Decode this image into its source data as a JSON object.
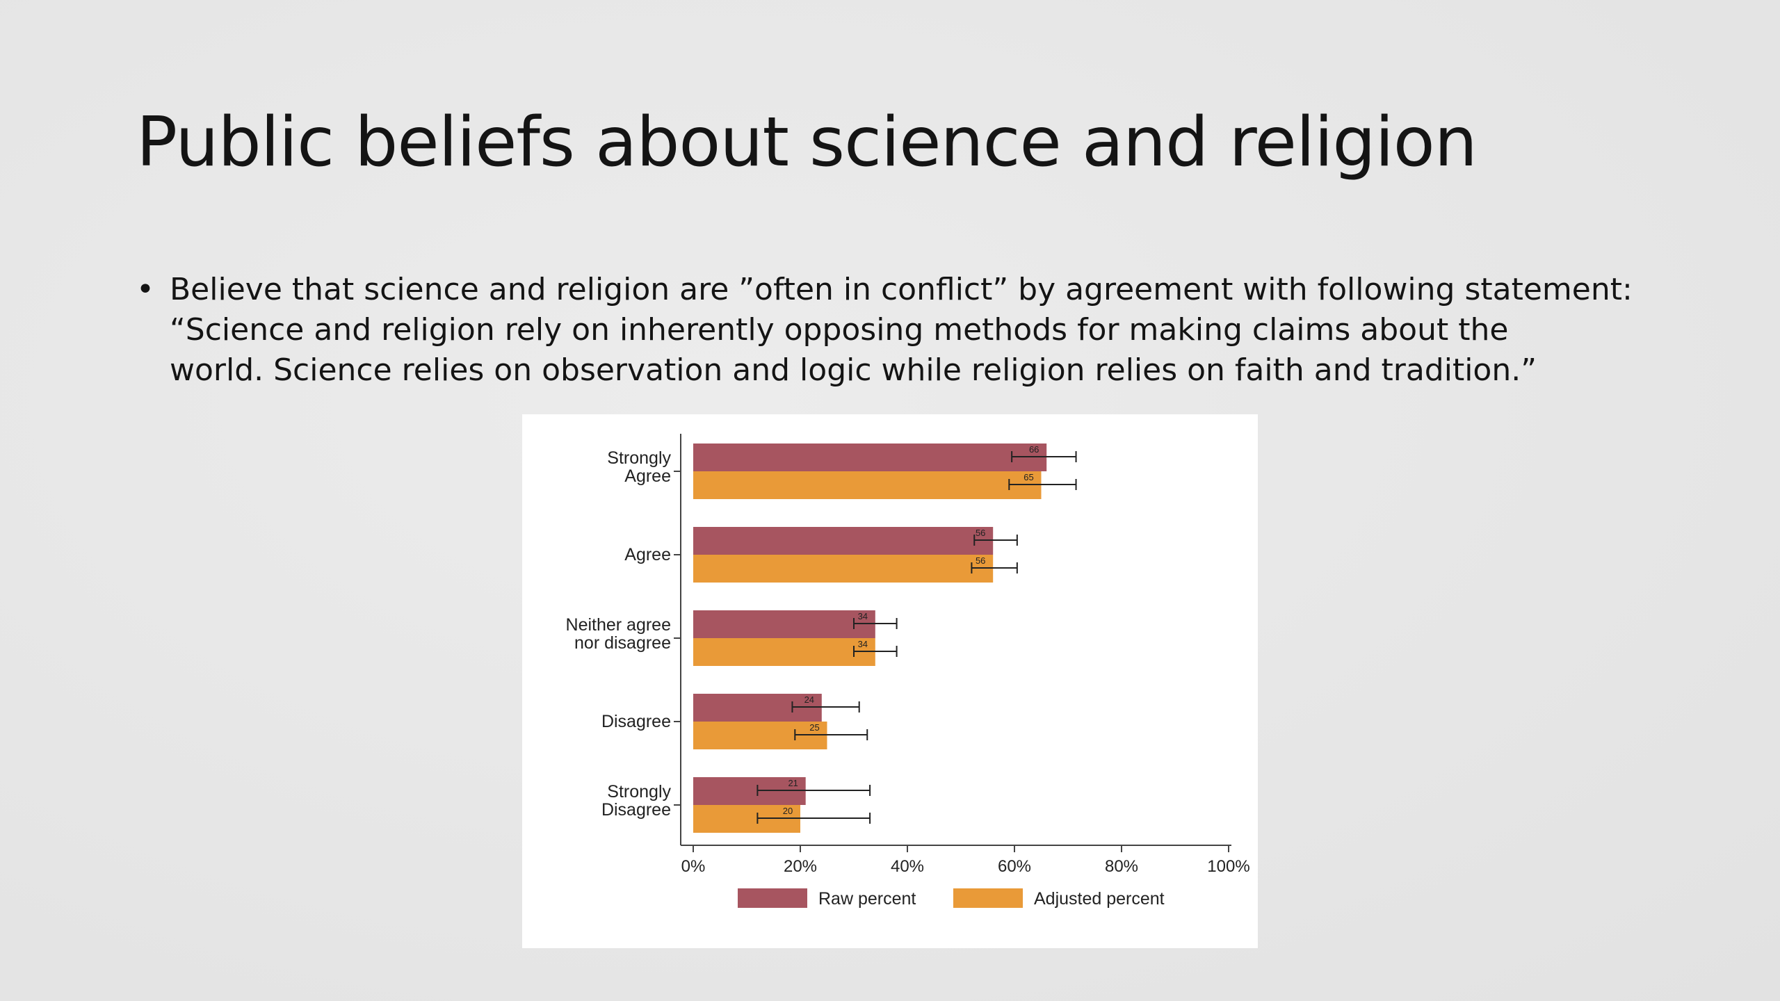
{
  "slide": {
    "title": "Public beliefs about science and religion",
    "bullet_lines": [
      "Believe that science and religion are ”often in conflict” by agreement with following statement:",
      "“Science and religion rely on inherently opposing methods for making claims about the",
      "world.  Science relies on observation and logic while religion relies on faith and tradition.”"
    ]
  },
  "chart_data": {
    "type": "bar",
    "orientation": "horizontal",
    "categories": [
      [
        "Strongly",
        "Agree"
      ],
      [
        "Agree"
      ],
      [
        "Neither agree",
        "nor disagree"
      ],
      [
        "Disagree"
      ],
      [
        "Strongly",
        "Disagree"
      ]
    ],
    "series": [
      {
        "name": "Raw percent",
        "color": "#a75560",
        "values": [
          66,
          56,
          34,
          24,
          21
        ],
        "labels": [
          "66",
          "56",
          "34",
          "24",
          "21"
        ],
        "ci": [
          [
            59.5,
            71.5
          ],
          [
            52.5,
            60.5
          ],
          [
            30,
            38
          ],
          [
            18.5,
            31
          ],
          [
            12,
            33
          ]
        ]
      },
      {
        "name": "Adjusted percent",
        "color": "#e99a38",
        "values": [
          65,
          56,
          34,
          25,
          20
        ],
        "labels": [
          "65",
          "56",
          "34",
          "25",
          "20"
        ],
        "ci": [
          [
            59,
            71.5
          ],
          [
            52,
            60.5
          ],
          [
            30,
            38
          ],
          [
            19,
            32.5
          ],
          [
            12,
            33
          ]
        ]
      }
    ],
    "x_ticks": [
      "0%",
      "20%",
      "40%",
      "60%",
      "80%",
      "100%"
    ],
    "x_tick_values": [
      0,
      20,
      40,
      60,
      80,
      100
    ],
    "xlim": [
      0,
      100
    ],
    "title": "",
    "xlabel": "",
    "ylabel": "",
    "grid": false,
    "legend_position": "bottom"
  }
}
